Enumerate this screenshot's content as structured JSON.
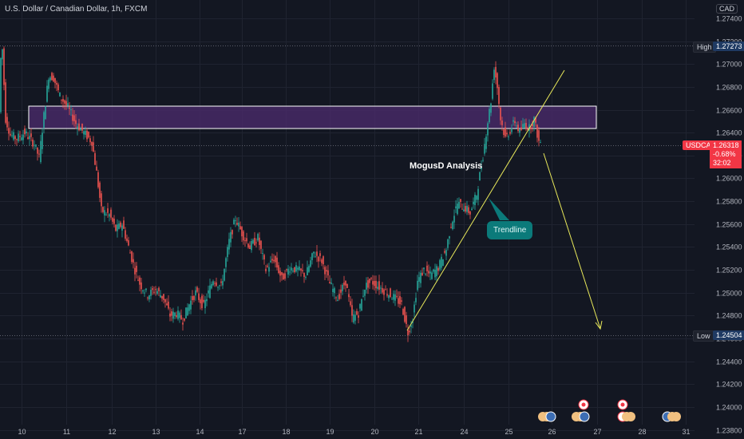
{
  "header": {
    "title": "U.S. Dollar / Canadian Dollar, 1h, FXCM",
    "currency": "CAD"
  },
  "price_tags": {
    "high_label": "High",
    "high_value": "1.27273",
    "low_label": "Low",
    "low_value": "1.24504",
    "symbol": "USDCAD",
    "current_value": "1.26318",
    "change": "-0.68%",
    "countdown": "32:02"
  },
  "annotations": {
    "analysis": "MogusD Analysis",
    "trendline": "Trendline"
  },
  "colors": {
    "background": "#131722",
    "up": "#26a69a",
    "down": "#ef5350",
    "zone_fill": "#4a2a6a",
    "trendline": "#e8e85a",
    "callout": "#0b7a7a"
  },
  "chart_data": {
    "type": "candlestick",
    "title": "U.S. Dollar / Canadian Dollar, 1h, FXCM",
    "y_ticks": [
      "1.27400",
      "1.27200",
      "1.27000",
      "1.26800",
      "1.26600",
      "1.26400",
      "1.26200",
      "1.26000",
      "1.25800",
      "1.25600",
      "1.25400",
      "1.25200",
      "1.25000",
      "1.24800",
      "1.24600",
      "1.24400",
      "1.24200",
      "1.24000",
      "1.23800"
    ],
    "ylim": [
      1.2372,
      1.2756
    ],
    "x_ticks": [
      "10",
      "11",
      "12",
      "13",
      "14",
      "17",
      "18",
      "19",
      "20",
      "21",
      "24",
      "25",
      "26",
      "27",
      "28",
      "31"
    ],
    "resistance_zone": [
      1.2648,
      1.2668
    ],
    "high": 1.27273,
    "low": 1.24504,
    "last": 1.26318,
    "price_path": [
      [
        0,
        1.2658
      ],
      [
        3,
        1.2728
      ],
      [
        8,
        1.2652
      ],
      [
        14,
        1.2638
      ],
      [
        22,
        1.2635
      ],
      [
        32,
        1.264
      ],
      [
        44,
        1.263
      ],
      [
        50,
        1.2618
      ],
      [
        56,
        1.2655
      ],
      [
        62,
        1.269
      ],
      [
        68,
        1.2688
      ],
      [
        76,
        1.2672
      ],
      [
        86,
        1.2662
      ],
      [
        96,
        1.2648
      ],
      [
        106,
        1.264
      ],
      [
        116,
        1.2632
      ],
      [
        122,
        1.2605
      ],
      [
        128,
        1.2572
      ],
      [
        138,
        1.2568
      ],
      [
        146,
        1.2555
      ],
      [
        154,
        1.256
      ],
      [
        162,
        1.254
      ],
      [
        170,
        1.252
      ],
      [
        176,
        1.2508
      ],
      [
        186,
        1.2498
      ],
      [
        196,
        1.2503
      ],
      [
        206,
        1.2495
      ],
      [
        214,
        1.248
      ],
      [
        222,
        1.2482
      ],
      [
        230,
        1.2476
      ],
      [
        238,
        1.249
      ],
      [
        246,
        1.25
      ],
      [
        256,
        1.2488
      ],
      [
        268,
        1.2512
      ],
      [
        278,
        1.2505
      ],
      [
        288,
        1.2545
      ],
      [
        296,
        1.2565
      ],
      [
        304,
        1.2552
      ],
      [
        314,
        1.254
      ],
      [
        324,
        1.2548
      ],
      [
        334,
        1.252
      ],
      [
        344,
        1.253
      ],
      [
        354,
        1.2512
      ],
      [
        364,
        1.2522
      ],
      [
        374,
        1.252
      ],
      [
        384,
        1.2515
      ],
      [
        394,
        1.2535
      ],
      [
        404,
        1.2528
      ],
      [
        414,
        1.2508
      ],
      [
        424,
        1.2495
      ],
      [
        434,
        1.251
      ],
      [
        442,
        1.2478
      ],
      [
        450,
        1.2482
      ],
      [
        458,
        1.2505
      ],
      [
        466,
        1.251
      ],
      [
        476,
        1.2505
      ],
      [
        486,
        1.25
      ],
      [
        496,
        1.2495
      ],
      [
        504,
        1.249
      ],
      [
        512,
        1.2465
      ],
      [
        518,
        1.2478
      ],
      [
        524,
        1.251
      ],
      [
        532,
        1.252
      ],
      [
        540,
        1.2515
      ],
      [
        550,
        1.2522
      ],
      [
        560,
        1.2538
      ],
      [
        566,
        1.256
      ],
      [
        574,
        1.2578
      ],
      [
        582,
        1.2575
      ],
      [
        590,
        1.257
      ],
      [
        598,
        1.2586
      ],
      [
        606,
        1.262
      ],
      [
        612,
        1.265
      ],
      [
        616,
        1.2668
      ],
      [
        620,
        1.2698
      ],
      [
        624,
        1.268
      ],
      [
        628,
        1.2652
      ],
      [
        634,
        1.2635
      ],
      [
        640,
        1.2642
      ],
      [
        646,
        1.265
      ],
      [
        652,
        1.264
      ],
      [
        658,
        1.2648
      ],
      [
        664,
        1.2644
      ],
      [
        670,
        1.2652
      ],
      [
        676,
        1.2632
      ]
    ]
  }
}
